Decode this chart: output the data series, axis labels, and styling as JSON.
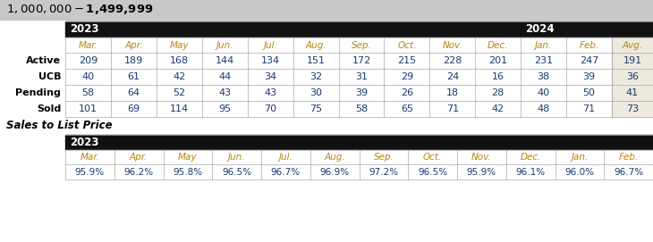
{
  "title": "$1,000,000 - $1,499,999",
  "title_bg": "#c8c8c8",
  "page_bg": "#ffffff",
  "header_bg": "#111111",
  "col_header_bg": "#ffffff",
  "col_header_text_color": "#b8860b",
  "avg_col_bg": "#ede9df",
  "row_label_color": "#000000",
  "data_text_color": "#1a3a6b",
  "border_color": "#aaaaaa",
  "year_headers": [
    "2023",
    "2024"
  ],
  "col_headers": [
    "Mar.",
    "Apr.",
    "May",
    "Jun.",
    "Jul.",
    "Aug.",
    "Sep.",
    "Oct.",
    "Nov.",
    "Dec.",
    "Jan.",
    "Feb.",
    "Avg."
  ],
  "row_labels": [
    "Active",
    "UCB",
    "Pending",
    "Sold"
  ],
  "table1_data": [
    [
      209,
      189,
      168,
      144,
      134,
      151,
      172,
      215,
      228,
      201,
      231,
      247,
      191
    ],
    [
      40,
      61,
      42,
      44,
      34,
      32,
      31,
      29,
      24,
      16,
      38,
      39,
      36
    ],
    [
      58,
      64,
      52,
      43,
      43,
      30,
      39,
      26,
      18,
      28,
      40,
      50,
      41
    ],
    [
      101,
      69,
      114,
      95,
      70,
      75,
      58,
      65,
      71,
      42,
      48,
      71,
      73
    ]
  ],
  "sales_label": "Sales to List Price",
  "sales_col_headers": [
    "Mar.",
    "Apr.",
    "May",
    "Jun.",
    "Jul.",
    "Aug.",
    "Sep.",
    "Oct.",
    "Nov.",
    "Dec.",
    "Jan.",
    "Feb."
  ],
  "sales_data": [
    "95.9%",
    "96.2%",
    "95.8%",
    "96.5%",
    "96.7%",
    "96.9%",
    "97.2%",
    "96.5%",
    "95.9%",
    "96.1%",
    "96.0%",
    "96.7%"
  ]
}
